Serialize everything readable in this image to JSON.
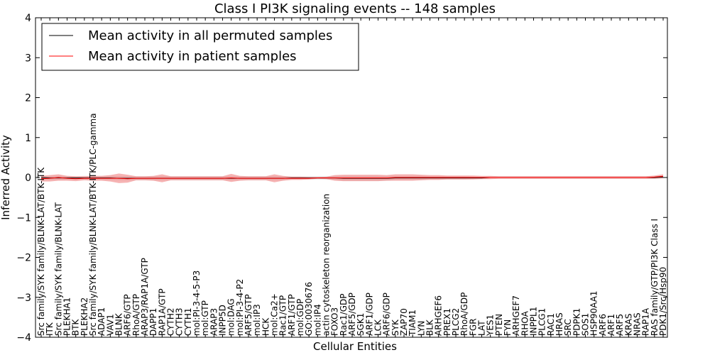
{
  "chart_data": {
    "type": "line",
    "title": "Class I PI3K signaling events -- 148 samples",
    "xlabel": "Cellular Entities",
    "ylabel": "Inferred Activity",
    "ylim": [
      -4,
      4
    ],
    "yticks": [
      "−4",
      "−3",
      "−2",
      "−1",
      "0",
      "1",
      "2",
      "3",
      "4"
    ],
    "legend_position": "top-left",
    "grid": false,
    "colors": {
      "permuted": "#000000",
      "patient": "#ff0000",
      "band_patient": "#f08080",
      "band_permuted": "#c8c8c8"
    },
    "categories": [
      "Src family/SYK family/BLNK-LAT/BTK-ITK",
      "ITK",
      "Src family/SYK family/BLNK-LAT",
      "PLEKHA1",
      "BTK",
      "PLEKHA2",
      "Src family/SYK family/BLNK-LAT/BTK-ITK/PLC-gamma",
      "ADAP1",
      "VAV1",
      "BLNK",
      "ARF6/GTP",
      "RhoA/GTP",
      "ARAP3/RAP1A/GTP",
      "DAPP1",
      "RAP1A/GTP",
      "CYTH2",
      "CYTH3",
      "CYTH1",
      "mol:PI-3-4-5-P3",
      "mol:GTP",
      "ARAP3",
      "INPP5D",
      "mol:DAG",
      "mol:PI-3-4-P2",
      "ARF5/GTP",
      "mol:IP3",
      "HCK",
      "mol:Ca2+",
      "Rac1/GTP",
      "ARF1/GTP",
      "mol:GDP",
      "GO:0030676",
      "mol:IP4",
      "actin cytoskeleton reorganization",
      "FOXO3",
      "Rac1/GDP",
      "ARF5/GDP",
      "SGK1",
      "ARF1/GDP",
      "LCK",
      "ARF6/GDP",
      "SYK",
      "ZAP70",
      "TIAM1",
      "LYN",
      "BLK",
      "ARHGEF6",
      "PREX1",
      "PLCG2",
      "RhoA/GDP",
      "FGR",
      "LAT",
      "YES1",
      "PTEN",
      "FYN",
      "ARHGEF7",
      "RHOA",
      "INPPL1",
      "PLCG1",
      "RAC1",
      "HRAS",
      "SRC",
      "PDPK1",
      "SOS1",
      "HSP90AA1",
      "ARF6",
      "ARF1",
      "ARF5",
      "KRAS",
      "NRAS",
      "RAP1A",
      "RAS family/GTP/PI3K Class I",
      "PDK1/Src/Hsp90"
    ],
    "series": [
      {
        "name": "Mean activity in all permuted samples",
        "values": [
          0.0,
          -0.01,
          -0.01,
          -0.01,
          -0.01,
          -0.01,
          -0.01,
          -0.01,
          -0.01,
          -0.02,
          -0.02,
          -0.02,
          -0.02,
          -0.02,
          -0.02,
          -0.02,
          -0.02,
          -0.02,
          -0.02,
          -0.02,
          -0.02,
          -0.02,
          -0.02,
          -0.02,
          -0.02,
          -0.02,
          -0.02,
          -0.02,
          -0.02,
          -0.01,
          -0.01,
          -0.01,
          -0.01,
          -0.01,
          -0.01,
          -0.02,
          -0.02,
          -0.02,
          -0.02,
          -0.02,
          -0.02,
          -0.01,
          -0.01,
          -0.01,
          -0.01,
          -0.01,
          -0.01,
          -0.01,
          -0.01,
          -0.01,
          -0.01,
          -0.01,
          0.0,
          0.0,
          0.0,
          0.0,
          0.0,
          0.0,
          0.0,
          0.0,
          0.0,
          0.0,
          0.0,
          0.0,
          0.0,
          0.0,
          0.0,
          0.0,
          0.0,
          0.0,
          0.0,
          0.0,
          0.01
        ],
        "band": [
          0.04,
          0.05,
          0.05,
          0.05,
          0.04,
          0.05,
          0.05,
          0.05,
          0.05,
          0.05,
          0.05,
          0.05,
          0.05,
          0.05,
          0.05,
          0.05,
          0.05,
          0.05,
          0.05,
          0.05,
          0.05,
          0.05,
          0.05,
          0.05,
          0.05,
          0.05,
          0.05,
          0.05,
          0.05,
          0.04,
          0.04,
          0.04,
          0.04,
          0.04,
          0.05,
          0.06,
          0.06,
          0.06,
          0.06,
          0.06,
          0.06,
          0.05,
          0.05,
          0.05,
          0.05,
          0.04,
          0.04,
          0.04,
          0.04,
          0.04,
          0.03,
          0.03,
          0.03,
          0.03,
          0.03,
          0.03,
          0.03,
          0.03,
          0.03,
          0.03,
          0.03,
          0.03,
          0.03,
          0.03,
          0.03,
          0.03,
          0.03,
          0.03,
          0.03,
          0.03,
          0.03,
          0.03,
          0.04
        ]
      },
      {
        "name": "Mean activity in patient samples",
        "values": [
          -0.03,
          -0.02,
          0.0,
          -0.02,
          -0.03,
          -0.02,
          -0.02,
          -0.02,
          -0.02,
          -0.02,
          -0.03,
          -0.02,
          -0.02,
          -0.02,
          -0.02,
          -0.02,
          -0.02,
          -0.02,
          -0.02,
          -0.02,
          -0.02,
          -0.02,
          -0.01,
          -0.02,
          -0.02,
          -0.02,
          -0.02,
          -0.02,
          -0.02,
          -0.02,
          -0.02,
          -0.02,
          -0.01,
          -0.01,
          -0.01,
          -0.01,
          -0.01,
          -0.01,
          -0.01,
          -0.01,
          -0.01,
          0.0,
          0.0,
          0.0,
          0.0,
          0.0,
          0.0,
          0.0,
          0.0,
          0.0,
          0.0,
          0.0,
          0.0,
          0.0,
          0.0,
          0.0,
          0.0,
          0.0,
          0.0,
          0.0,
          0.0,
          0.0,
          0.0,
          0.0,
          0.0,
          0.0,
          0.0,
          0.0,
          0.0,
          0.0,
          0.0,
          0.01,
          0.03
        ],
        "band": [
          0.07,
          0.08,
          0.08,
          0.06,
          0.06,
          0.05,
          0.06,
          0.06,
          0.08,
          0.12,
          0.1,
          0.05,
          0.05,
          0.06,
          0.1,
          0.05,
          0.05,
          0.05,
          0.05,
          0.05,
          0.05,
          0.05,
          0.1,
          0.06,
          0.05,
          0.05,
          0.05,
          0.1,
          0.06,
          0.04,
          0.04,
          0.03,
          0.02,
          0.03,
          0.07,
          0.08,
          0.08,
          0.08,
          0.08,
          0.08,
          0.07,
          0.08,
          0.08,
          0.08,
          0.07,
          0.06,
          0.06,
          0.05,
          0.05,
          0.05,
          0.05,
          0.04,
          0.04,
          0.03,
          0.03,
          0.03,
          0.03,
          0.03,
          0.03,
          0.03,
          0.03,
          0.03,
          0.03,
          0.03,
          0.03,
          0.03,
          0.03,
          0.03,
          0.03,
          0.03,
          0.03,
          0.04,
          0.05
        ]
      }
    ]
  }
}
